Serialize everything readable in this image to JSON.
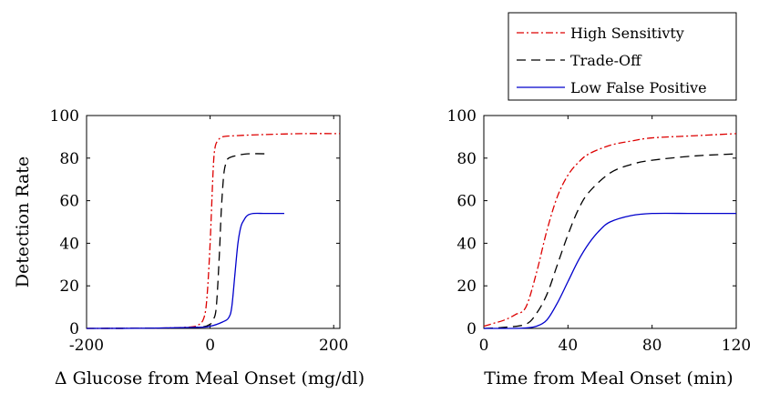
{
  "legend": {
    "entries": [
      {
        "label": "High Sensitivty",
        "color": "#dd0000",
        "dash": "dashdot"
      },
      {
        "label": "Trade-Off",
        "color": "#000000",
        "dash": "dashed"
      },
      {
        "label": "Low False Positive",
        "color": "#0000cc",
        "dash": "solid"
      }
    ]
  },
  "chart_data": [
    {
      "type": "line",
      "xlabel": "Δ Glucose from Meal Onset (mg/dl)",
      "ylabel": "Detection Rate",
      "xlim": [
        -200,
        210
      ],
      "ylim": [
        0,
        100
      ],
      "xticks": [
        -200,
        0,
        200
      ],
      "xtick_labels": [
        "-200",
        "0",
        "200"
      ],
      "yticks": [
        0,
        20,
        40,
        60,
        80,
        100
      ],
      "grid": false,
      "series": [
        {
          "name": "High Sensitivty",
          "color": "#dd0000",
          "dash": "dashdot",
          "x": [
            -200,
            -100,
            -40,
            -20,
            -10,
            -5,
            0,
            5,
            8,
            12,
            20,
            40,
            80,
            150,
            210
          ],
          "y": [
            0,
            0.1,
            0.5,
            1.5,
            5,
            15,
            40,
            75,
            85,
            88,
            90,
            90.5,
            91,
            91.5,
            91.5
          ]
        },
        {
          "name": "Trade-Off",
          "color": "#000000",
          "dash": "dashed",
          "x": [
            -200,
            -100,
            -20,
            0,
            5,
            10,
            15,
            18,
            22,
            26,
            30,
            40,
            60,
            95
          ],
          "y": [
            0,
            0.1,
            0.5,
            2,
            4,
            10,
            35,
            55,
            72,
            78,
            80,
            81,
            82,
            82
          ]
        },
        {
          "name": "Low False Positive",
          "color": "#0000cc",
          "dash": "solid",
          "x": [
            -200,
            -100,
            -20,
            0,
            20,
            30,
            35,
            40,
            45,
            50,
            55,
            60,
            70,
            90,
            120
          ],
          "y": [
            0,
            0.1,
            0.5,
            1,
            3,
            5,
            10,
            25,
            40,
            48,
            51,
            53,
            54,
            54,
            54
          ]
        }
      ]
    },
    {
      "type": "line",
      "xlabel": "Time from Meal Onset (min)",
      "ylabel": "",
      "xlim": [
        0,
        120
      ],
      "ylim": [
        0,
        100
      ],
      "xticks": [
        0,
        40,
        80,
        120
      ],
      "xtick_labels": [
        "0",
        "40",
        "80",
        "120"
      ],
      "yticks": [
        0,
        20,
        40,
        60,
        80,
        100
      ],
      "grid": false,
      "series": [
        {
          "name": "High Sensitivty",
          "color": "#dd0000",
          "dash": "dashdot",
          "x": [
            0,
            5,
            10,
            15,
            20,
            25,
            30,
            35,
            40,
            45,
            50,
            60,
            70,
            80,
            100,
            120
          ],
          "y": [
            1,
            2.5,
            4,
            6.5,
            10,
            26,
            46,
            62,
            72,
            78,
            82,
            86,
            88,
            89.5,
            90.5,
            91.5
          ]
        },
        {
          "name": "Trade-Off",
          "color": "#000000",
          "dash": "dashed",
          "x": [
            0,
            10,
            20,
            25,
            30,
            35,
            40,
            45,
            50,
            60,
            70,
            80,
            100,
            120
          ],
          "y": [
            0,
            0.5,
            2,
            7,
            16,
            30,
            44,
            56,
            64,
            73,
            77,
            79,
            81,
            82
          ]
        },
        {
          "name": "Low False Positive",
          "color": "#0000cc",
          "dash": "solid",
          "x": [
            0,
            15,
            20,
            25,
            30,
            35,
            40,
            45,
            50,
            55,
            60,
            70,
            80,
            100,
            120
          ],
          "y": [
            0,
            0,
            0.2,
            1,
            4,
            12,
            22,
            32,
            40,
            46,
            50,
            53,
            54,
            54,
            54
          ]
        }
      ]
    }
  ]
}
